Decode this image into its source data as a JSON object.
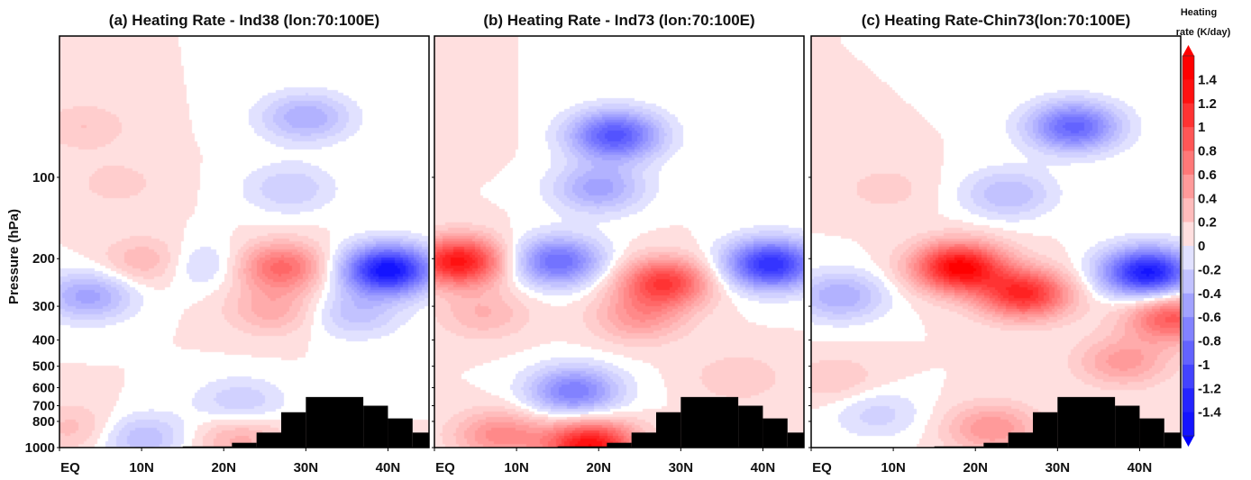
{
  "chart_data": [
    {
      "type": "heatmap",
      "id": "a",
      "title": "(a) Heating Rate - Ind38 (lon:70:100E)",
      "xlabel": "",
      "ylabel": "Pressure (hPa)",
      "x_ticks": [
        "EQ",
        "10N",
        "20N",
        "30N",
        "40N"
      ],
      "y_ticks": [
        "100",
        "200",
        "300",
        "400",
        "500",
        "600",
        "700",
        "800",
        "1000"
      ],
      "xlim": [
        0,
        45
      ],
      "ylim": [
        1000,
        30
      ],
      "y_scale": "log",
      "features": [
        {
          "lat": 3,
          "p": 65,
          "value": 0.2
        },
        {
          "lat": 7,
          "p": 105,
          "value": 0.15
        },
        {
          "lat": 30,
          "p": 60,
          "value": -0.5
        },
        {
          "lat": 28,
          "p": 110,
          "value": -0.3
        },
        {
          "lat": 11,
          "p": 205,
          "value": 0.35
        },
        {
          "lat": 27,
          "p": 215,
          "value": 0.75
        },
        {
          "lat": 40,
          "p": 220,
          "value": -1.5
        },
        {
          "lat": 3.5,
          "p": 275,
          "value": -0.55
        },
        {
          "lat": 17,
          "p": 210,
          "value": -0.3
        },
        {
          "lat": 26,
          "p": 310,
          "value": 0.35
        },
        {
          "lat": 36,
          "p": 320,
          "value": -0.35
        },
        {
          "lat": 22,
          "p": 680,
          "value": -0.3
        },
        {
          "lat": 10,
          "p": 920,
          "value": -0.4
        },
        {
          "lat": 22,
          "p": 930,
          "value": 0.35
        },
        {
          "lat": 2,
          "p": 850,
          "value": 0.25
        }
      ]
    },
    {
      "type": "heatmap",
      "id": "b",
      "title": "(b) Heating Rate - Ind73 (lon:70:100E)",
      "xlabel": "",
      "ylabel": "",
      "x_ticks": [
        "EQ",
        "10N",
        "20N",
        "30N",
        "40N"
      ],
      "y_ticks": [],
      "xlim": [
        0,
        45
      ],
      "ylim": [
        1000,
        30
      ],
      "y_scale": "log",
      "features": [
        {
          "lat": 22,
          "p": 70,
          "value": -1.05
        },
        {
          "lat": 20,
          "p": 110,
          "value": -0.55
        },
        {
          "lat": 3,
          "p": 205,
          "value": 1.25
        },
        {
          "lat": 15,
          "p": 205,
          "value": -0.9
        },
        {
          "lat": 28,
          "p": 245,
          "value": 1.0
        },
        {
          "lat": 25,
          "p": 330,
          "value": 0.45
        },
        {
          "lat": 41,
          "p": 210,
          "value": -1.3
        },
        {
          "lat": 6,
          "p": 320,
          "value": 0.3
        },
        {
          "lat": 17,
          "p": 620,
          "value": -0.8
        },
        {
          "lat": 19,
          "p": 980,
          "value": 1.3
        },
        {
          "lat": 8,
          "p": 900,
          "value": 0.55
        },
        {
          "lat": 37,
          "p": 550,
          "value": 0.2
        },
        {
          "lat": 2,
          "p": 70,
          "value": 0.1
        }
      ]
    },
    {
      "type": "heatmap",
      "id": "c",
      "title": "(c) Heating Rate-Chin73(lon:70:100E)",
      "xlabel": "",
      "ylabel": "",
      "x_ticks": [
        "EQ",
        "10N",
        "20N",
        "30N",
        "40N"
      ],
      "y_ticks": [],
      "xlim": [
        0,
        45
      ],
      "ylim": [
        1000,
        30
      ],
      "y_scale": "log",
      "features": [
        {
          "lat": 32,
          "p": 65,
          "value": -0.95
        },
        {
          "lat": 24,
          "p": 115,
          "value": -0.4
        },
        {
          "lat": 18,
          "p": 215,
          "value": 1.35
        },
        {
          "lat": 26,
          "p": 270,
          "value": 1.1
        },
        {
          "lat": 41,
          "p": 225,
          "value": -1.45
        },
        {
          "lat": 3.5,
          "p": 275,
          "value": -0.5
        },
        {
          "lat": 44,
          "p": 330,
          "value": 0.85
        },
        {
          "lat": 38,
          "p": 480,
          "value": 0.45
        },
        {
          "lat": 9,
          "p": 110,
          "value": 0.15
        },
        {
          "lat": 22,
          "p": 850,
          "value": 0.5
        },
        {
          "lat": 8,
          "p": 750,
          "value": -0.25
        },
        {
          "lat": 3,
          "p": 560,
          "value": 0.2
        }
      ]
    }
  ],
  "topography": {
    "color": "#000000",
    "profile": [
      {
        "lat_from": 15,
        "lat_to": 21,
        "p_top": 990
      },
      {
        "lat_from": 21,
        "lat_to": 24,
        "p_top": 960
      },
      {
        "lat_from": 24,
        "lat_to": 27,
        "p_top": 880
      },
      {
        "lat_from": 27,
        "lat_to": 30,
        "p_top": 740
      },
      {
        "lat_from": 30,
        "lat_to": 37,
        "p_top": 650
      },
      {
        "lat_from": 37,
        "lat_to": 40,
        "p_top": 700
      },
      {
        "lat_from": 40,
        "lat_to": 43,
        "p_top": 780
      },
      {
        "lat_from": 43,
        "lat_to": 45,
        "p_top": 880
      }
    ]
  },
  "colorbar": {
    "title_line1": "Heating",
    "title_line2": "rate (K/day)",
    "ticks": [
      "1.4",
      "1.2",
      "1",
      "0.8",
      "0.6",
      "0.4",
      "0.2",
      "0",
      "-0.2",
      "-0.4",
      "-0.6",
      "-0.8",
      "-1",
      "-1.2",
      "-1.4"
    ],
    "levels": [
      1.4,
      1.2,
      1.0,
      0.8,
      0.6,
      0.4,
      0.2,
      0,
      -0.2,
      -0.4,
      -0.6,
      -0.8,
      -1.0,
      -1.2,
      -1.4
    ],
    "positive_color": "#ff0000",
    "negative_color": "#0000ff",
    "neutral_color": "#ffffff"
  }
}
